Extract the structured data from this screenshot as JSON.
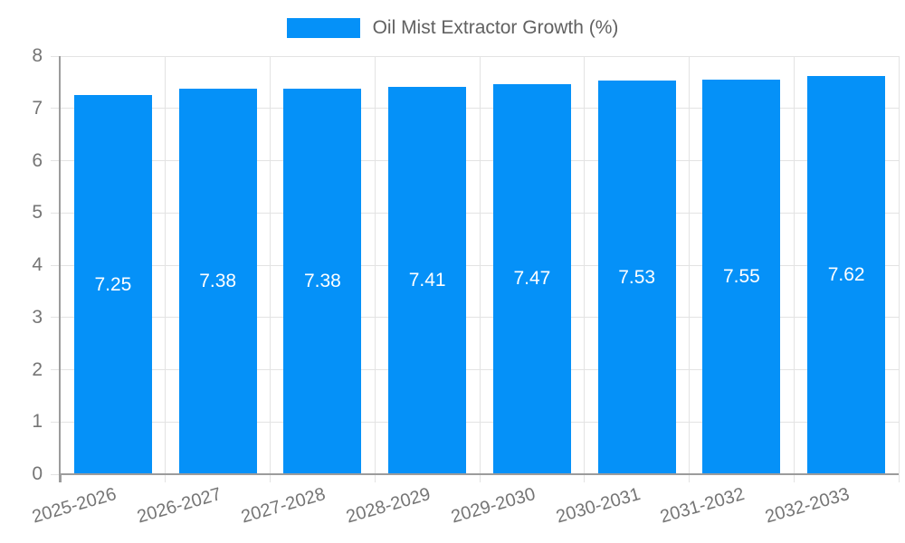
{
  "legend": {
    "position": "top"
  },
  "chart_data": {
    "type": "bar",
    "title": "Oil Mist Extractor Growth (%)",
    "categories": [
      "2025-2026",
      "2026-2027",
      "2027-2028",
      "2028-2029",
      "2029-2030",
      "2030-2031",
      "2031-2032",
      "2032-2033"
    ],
    "series": [
      {
        "name": "Oil Mist Extractor Growth (%)",
        "values": [
          7.25,
          7.38,
          7.38,
          7.41,
          7.47,
          7.53,
          7.55,
          7.62
        ]
      }
    ],
    "value_labels": [
      "7.25",
      "7.38",
      "7.38",
      "7.41",
      "7.47",
      "7.53",
      "7.55",
      "7.62"
    ],
    "xlabel": "",
    "ylabel": "",
    "ylim": [
      0,
      8
    ],
    "yticks": [
      0,
      1,
      2,
      3,
      4,
      5,
      6,
      7,
      8
    ],
    "grid": true,
    "legend_position": "top",
    "colors": {
      "bar": "#0591f8",
      "value_label": "#ffffff",
      "grid": "#e3e3e3",
      "axis": "#9c9c9c",
      "tick_label": "#757575",
      "legend_text": "#616161"
    }
  }
}
